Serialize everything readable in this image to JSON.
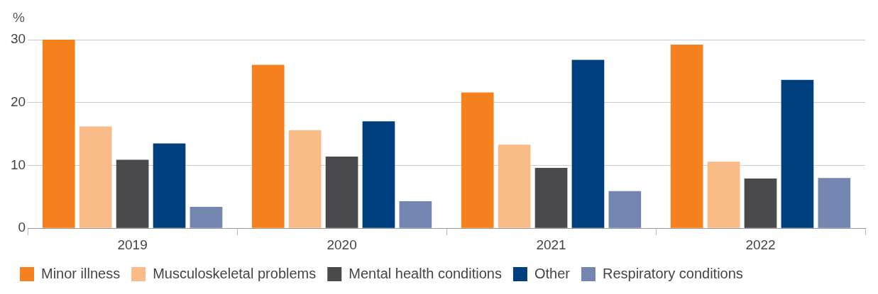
{
  "chart_data": {
    "type": "bar",
    "ylabel": "%",
    "categories": [
      "2019",
      "2020",
      "2021",
      "2022"
    ],
    "series": [
      {
        "name": "Minor illness",
        "color": "#f5821f",
        "values": [
          30,
          26,
          21.6,
          29.2
        ]
      },
      {
        "name": "Musculoskeletal problems",
        "color": "#f9bb87",
        "values": [
          16.2,
          15.6,
          13.3,
          10.6
        ]
      },
      {
        "name": "Mental health conditions",
        "color": "#4a4a4c",
        "values": [
          10.9,
          11.4,
          9.6,
          7.9
        ]
      },
      {
        "name": "Other",
        "color": "#003f7d",
        "values": [
          13.5,
          17,
          26.8,
          23.6
        ]
      },
      {
        "name": "Respiratory conditions",
        "color": "#7386b0",
        "values": [
          3.4,
          4.3,
          5.9,
          8
        ]
      }
    ],
    "ylim": [
      0,
      30
    ],
    "yticks": [
      0,
      10,
      20,
      30
    ],
    "grid": "y",
    "legend": "bottom"
  }
}
